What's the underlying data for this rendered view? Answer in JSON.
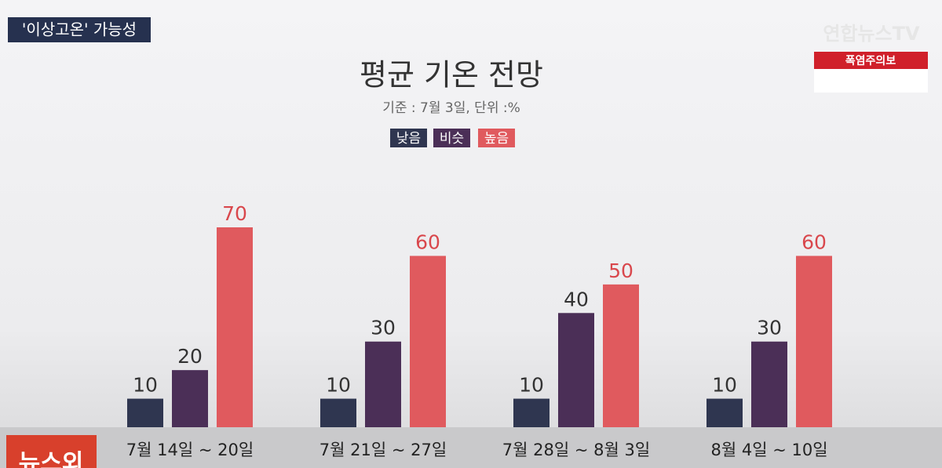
{
  "header": {
    "tag": "'이상고온' 가능성",
    "logo": "연합뉴스TV",
    "alert": "폭염주의보",
    "program": "뉴스외"
  },
  "chart_data": {
    "type": "bar",
    "title": "평균 기온 전망",
    "subtitle": "기준 : 7월 3일, 단위 :%",
    "categories": [
      "7월 14일 ~ 20일",
      "7월 21일 ~ 27일",
      "7월 28일 ~ 8월 3일",
      "8월 4일 ~ 10일"
    ],
    "series": [
      {
        "name": "낮음",
        "color": "#2f3650",
        "label_color": "#333333",
        "values": [
          10,
          10,
          10,
          10
        ]
      },
      {
        "name": "비슷",
        "color": "#4b2f57",
        "label_color": "#333333",
        "values": [
          20,
          30,
          40,
          30
        ]
      },
      {
        "name": "높음",
        "color": "#e05a5e",
        "label_color": "#d9474c",
        "values": [
          70,
          60,
          50,
          60
        ]
      }
    ]
  }
}
